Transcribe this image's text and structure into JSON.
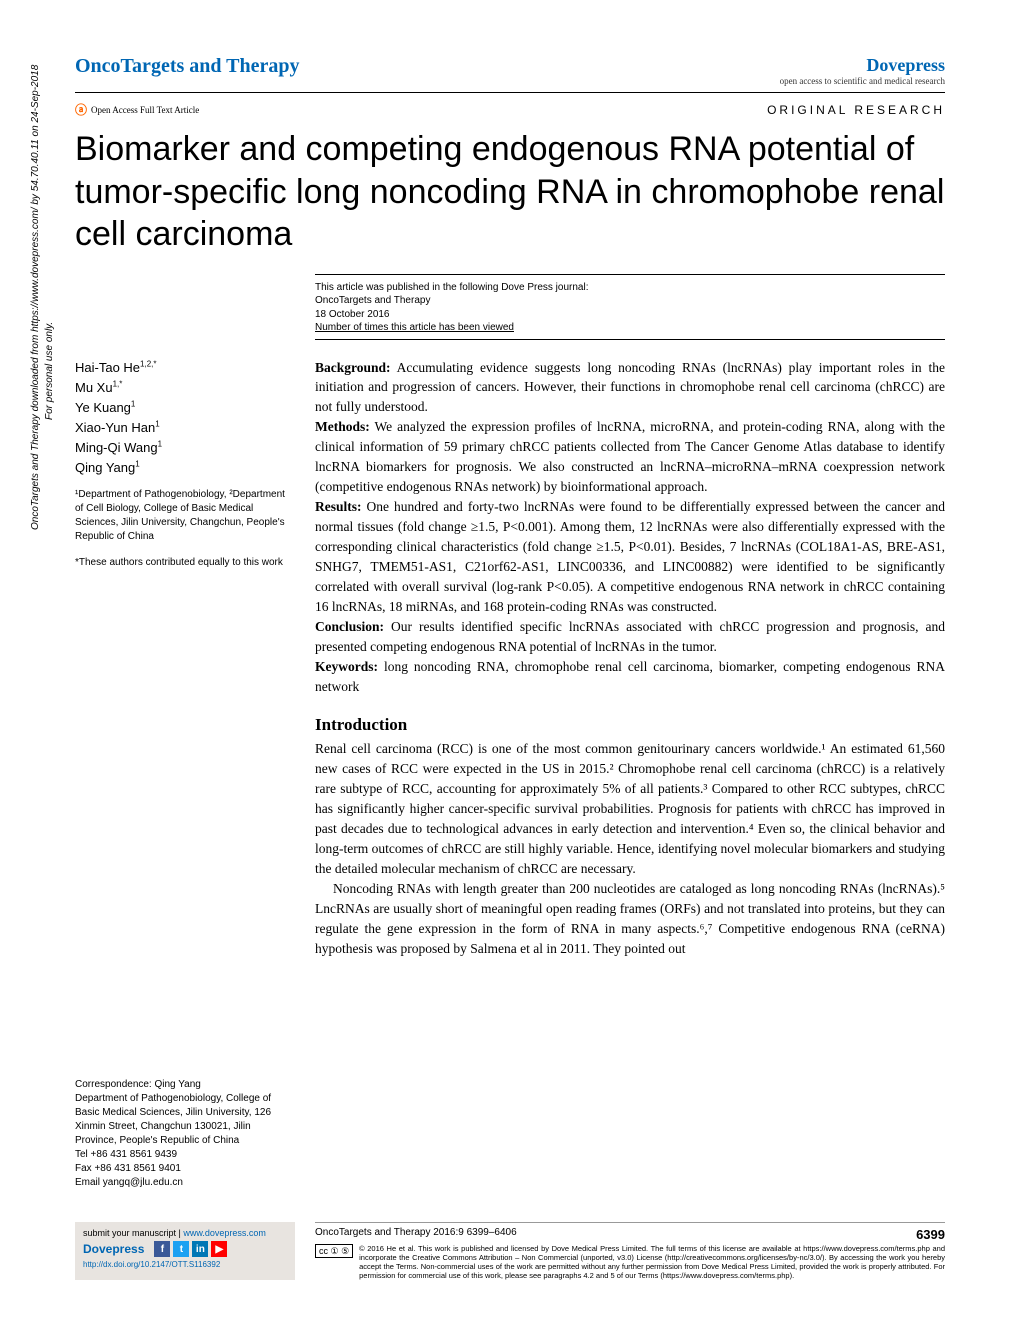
{
  "header": {
    "journal_name": "OncoTargets and Therapy",
    "dove_name": "Dovepress",
    "dove_subtitle": "open access to scientific and medical research",
    "oa_label": "Open Access Full Text Article",
    "article_type": "ORIGINAL RESEARCH"
  },
  "title": "Biomarker and competing endogenous RNA potential of tumor-specific long noncoding RNA in chromophobe renal cell carcinoma",
  "pub_info": {
    "line1": "This article was published in the following Dove Press journal:",
    "line2": "OncoTargets and Therapy",
    "line3": "18 October 2016",
    "line4": "Number of times this article has been viewed"
  },
  "authors": [
    {
      "name": "Hai-Tao He",
      "sup": "1,2,*"
    },
    {
      "name": "Mu Xu",
      "sup": "1,*"
    },
    {
      "name": "Ye Kuang",
      "sup": "1"
    },
    {
      "name": "Xiao-Yun Han",
      "sup": "1"
    },
    {
      "name": "Ming-Qi Wang",
      "sup": "1"
    },
    {
      "name": "Qing Yang",
      "sup": "1"
    }
  ],
  "affiliation": "¹Department of Pathogenobiology, ²Department of Cell Biology, College of Basic Medical Sciences, Jilin University, Changchun, People's Republic of China",
  "equal_note": "*These authors contributed equally to this work",
  "abstract": {
    "background_label": "Background:",
    "background": " Accumulating evidence suggests long noncoding RNAs (lncRNAs) play important roles in the initiation and progression of cancers. However, their functions in chromophobe renal cell carcinoma (chRCC) are not fully understood.",
    "methods_label": "Methods:",
    "methods": " We analyzed the expression profiles of lncRNA, microRNA, and protein-coding RNA, along with the clinical information of 59 primary chRCC patients collected from The Cancer Genome Atlas database to identify lncRNA biomarkers for prognosis. We also constructed an lncRNA–microRNA–mRNA coexpression network (competitive endogenous RNAs network) by bioinformational approach.",
    "results_label": "Results:",
    "results": " One hundred and forty-two lncRNAs were found to be differentially expressed between the cancer and normal tissues (fold change ≥1.5, P<0.001). Among them, 12 lncRNAs were also differentially expressed with the corresponding clinical characteristics (fold change ≥1.5, P<0.01). Besides, 7 lncRNAs (COL18A1-AS, BRE-AS1, SNHG7, TMEM51-AS1, C21orf62-AS1, LINC00336, and LINC00882) were identified to be significantly correlated with overall survival (log-rank P<0.05). A competitive endogenous RNA network in chRCC containing 16 lncRNAs, 18 miRNAs, and 168 protein-coding RNAs was constructed.",
    "conclusion_label": "Conclusion:",
    "conclusion": " Our results identified specific lncRNAs associated with chRCC progression and prognosis, and presented competing endogenous RNA potential of lncRNAs in the tumor.",
    "keywords_label": "Keywords:",
    "keywords": " long noncoding RNA, chromophobe renal cell carcinoma, biomarker, competing endogenous RNA network"
  },
  "intro_heading": "Introduction",
  "intro_p1": "Renal cell carcinoma (RCC) is one of the most common genitourinary cancers worldwide.¹ An estimated 61,560 new cases of RCC were expected in the US in 2015.² Chromophobe renal cell carcinoma (chRCC) is a relatively rare subtype of RCC, accounting for approximately 5% of all patients.³ Compared to other RCC subtypes, chRCC has significantly higher cancer-specific survival probabilities. Prognosis for patients with chRCC has improved in past decades due to technological advances in early detection and intervention.⁴ Even so, the clinical behavior and long-term outcomes of chRCC are still highly variable. Hence, identifying novel molecular biomarkers and studying the detailed molecular mechanism of chRCC are necessary.",
  "intro_p2": "Noncoding RNAs with length greater than 200 nucleotides are cataloged as long noncoding RNAs (lncRNAs).⁵ LncRNAs are usually short of meaningful open reading frames (ORFs) and not translated into proteins, but they can regulate the gene expression in the form of RNA in many aspects.⁶,⁷ Competitive endogenous RNA (ceRNA) hypothesis was proposed by Salmena et al in 2011. They pointed out",
  "correspondence": {
    "label": "Correspondence: Qing Yang",
    "dept": "Department of Pathogenobiology, College of Basic Medical Sciences, Jilin University, 126 Xinmin Street, Changchun 130021, Jilin Province, People's Republic of China",
    "tel": "Tel +86 431 8561 9439",
    "fax": "Fax +86 431 8561 9401",
    "email": "Email yangq@jlu.edu.cn"
  },
  "side_text": "OncoTargets and Therapy downloaded from https://www.dovepress.com/ by 54.70.40.11 on 24-Sep-2018",
  "side_text_2": "For personal use only.",
  "footer": {
    "submit_label": "submit your manuscript | ",
    "submit_url": "www.dovepress.com",
    "dove_small": "Dovepress",
    "doi": "http://dx.doi.org/10.2147/OTT.S116392",
    "citation": "OncoTargets and Therapy 2016:9 6399–6406",
    "page_num": "6399",
    "cc_badge": "cc ① ⑤",
    "license": "© 2016 He et al. This work is published and licensed by Dove Medical Press Limited. The full terms of this license are available at https://www.dovepress.com/terms.php and incorporate the Creative Commons Attribution – Non Commercial (unported, v3.0) License (http://creativecommons.org/licenses/by-nc/3.0/). By accessing the work you hereby accept the Terms. Non-commercial uses of the work are permitted without any further permission from Dove Medical Press Limited, provided the work is properly attributed. For permission for commercial use of this work, please see paragraphs 4.2 and 5 of our Terms (https://www.dovepress.com/terms.php)."
  },
  "colors": {
    "blue": "#0066b3",
    "orange": "#ff6600",
    "footer_bg": "#e8e4e0",
    "fb": "#3b5998",
    "tw": "#1da1f2",
    "li": "#0077b5",
    "yt": "#ff0000"
  }
}
